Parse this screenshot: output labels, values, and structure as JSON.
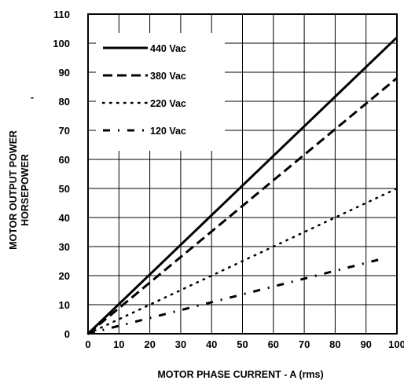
{
  "chart_data": {
    "type": "line",
    "xlabel": "MOTOR PHASE CURRENT  -  A (rms)",
    "ylabel_lines": [
      "MOTOR OUTPUT POWER",
      "HORSEPOWER"
    ],
    "ylabel_dash": "-",
    "xlim": [
      0,
      100
    ],
    "ylim": [
      0,
      110
    ],
    "x_ticks": [
      "0",
      "10",
      "20",
      "30",
      "40",
      "50",
      "60",
      "70",
      "80",
      "90",
      "100"
    ],
    "y_ticks": [
      "0",
      "10",
      "20",
      "30",
      "40",
      "50",
      "60",
      "70",
      "80",
      "90",
      "100",
      "110"
    ],
    "grid": true,
    "legend_position": "top-left",
    "series": [
      {
        "name": "440 Vac",
        "style": "solid",
        "x": [
          0,
          100
        ],
        "y": [
          0,
          102
        ]
      },
      {
        "name": "380 Vac",
        "style": "dashed",
        "x": [
          0,
          100
        ],
        "y": [
          0,
          88
        ]
      },
      {
        "name": "220 Vac",
        "style": "dotted",
        "x": [
          0,
          100
        ],
        "y": [
          0,
          50
        ]
      },
      {
        "name": "120 Vac",
        "style": "dash-dot",
        "x": [
          0,
          96
        ],
        "y": [
          0,
          26
        ]
      }
    ]
  }
}
